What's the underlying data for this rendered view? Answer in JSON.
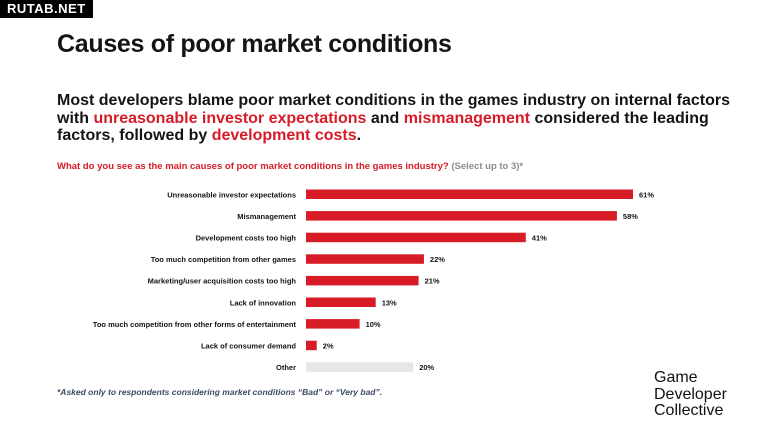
{
  "watermark": "RUTAB.NET",
  "page_title": "Causes of poor market conditions",
  "headline": {
    "part1": "Most developers blame poor market conditions in the games industry on internal factors with ",
    "hl1": "unreasonable investor expectations",
    "part2": " and ",
    "hl2": "mismanagement",
    "part3": " considered the leading factors, followed by ",
    "hl3": "development costs",
    "part4": "."
  },
  "question": {
    "text": "What do you see as the main causes of poor market conditions in the games industry?",
    "note": "(Select up to 3)*"
  },
  "footnote": "*Asked only to respondents considering market conditions “Bad” or “Very bad”.",
  "logo": {
    "line1": "Game",
    "line2": "Developer",
    "line3": "Collective"
  },
  "colors": {
    "accent": "#d71b27",
    "other_bar": "#e6e6e6",
    "text": "#141414"
  },
  "chart_data": {
    "type": "bar",
    "orientation": "horizontal",
    "categories": [
      "Unreasonable investor expectations",
      "Mismanagement",
      "Development costs too high",
      "Too much competition from other games",
      "Marketing/user acquisition costs too high",
      "Lack of innovation",
      "Too much competition from other forms of entertainment",
      "Lack of consumer demand",
      "Other"
    ],
    "values": [
      61,
      58,
      41,
      22,
      21,
      13,
      10,
      2,
      20
    ],
    "value_labels": [
      "61%",
      "58%",
      "41%",
      "22%",
      "21%",
      "13%",
      "10%",
      "2%",
      "20%"
    ],
    "bar_colors": [
      "#d71b27",
      "#d71b27",
      "#d71b27",
      "#d71b27",
      "#d71b27",
      "#d71b27",
      "#d71b27",
      "#d71b27",
      "#e6e6e6"
    ],
    "unit": "%",
    "xlim": [
      0,
      61
    ],
    "grid": false,
    "legend": "none"
  }
}
